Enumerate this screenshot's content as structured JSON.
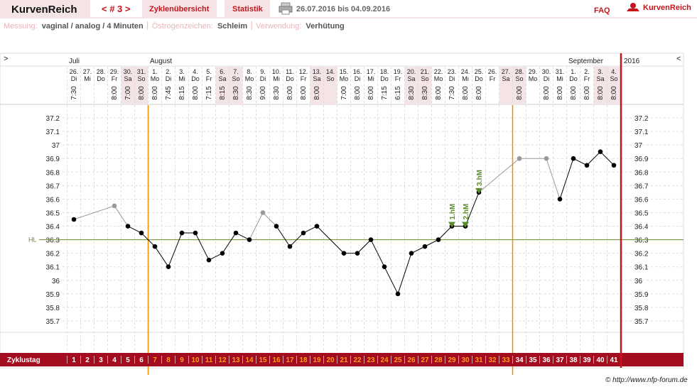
{
  "header": {
    "logo": "KurvenReich",
    "cycle_nav": "< # 3 >",
    "tabs": [
      "Zyklenübersicht",
      "Statistik"
    ],
    "date_range": "26.07.2016 bis 04.09.2016",
    "faq": "FAQ",
    "brand": "KurvenReich"
  },
  "info": [
    {
      "label": "Messung:",
      "value": "vaginal / analog / 4 Minuten"
    },
    {
      "label": "Östrogenzeichen:",
      "value": "Schleim"
    },
    {
      "label": "Verwendung:",
      "value": "Verhütung"
    }
  ],
  "footer": "© http://www.nfp-forum.de",
  "chart_data": {
    "type": "line",
    "nav_left": ">",
    "nav_right": "<",
    "months": [
      "Juli",
      "August",
      "September"
    ],
    "year": "2016",
    "dates": [
      "26.",
      "27.",
      "28.",
      "29.",
      "30.",
      "31.",
      "1.",
      "2.",
      "3.",
      "4.",
      "5.",
      "6.",
      "7.",
      "8.",
      "9.",
      "10.",
      "11.",
      "12.",
      "13.",
      "14.",
      "15.",
      "16.",
      "17.",
      "18.",
      "19.",
      "20.",
      "21.",
      "22.",
      "23.",
      "24.",
      "25.",
      "26.",
      "27.",
      "28.",
      "29.",
      "30.",
      "31.",
      "1.",
      "2.",
      "3.",
      "4."
    ],
    "weekdays": [
      "Di",
      "Mi",
      "Do",
      "Fr",
      "Sa",
      "So",
      "Mo",
      "Di",
      "Mi",
      "Do",
      "Fr",
      "Sa",
      "So",
      "Mo",
      "Di",
      "Mi",
      "Do",
      "Fr",
      "Sa",
      "So",
      "Mo",
      "Di",
      "Mi",
      "Do",
      "Fr",
      "Sa",
      "So",
      "Mo",
      "Di",
      "Mi",
      "Do",
      "Fr",
      "Sa",
      "So",
      "Mo",
      "Di",
      "Mi",
      "Do",
      "Fr",
      "Sa",
      "So"
    ],
    "times": [
      "7:30",
      null,
      null,
      "8:00",
      "7:00",
      "8:00",
      "8:00",
      "7:45",
      "8:15",
      "8:00",
      "7:15",
      "8:15",
      "8:30",
      "8:30",
      "9:00",
      "8:30",
      "8:00",
      "8:00",
      "8:00",
      null,
      "7:00",
      "8:00",
      "8:00",
      "7:15",
      "6:15",
      "8:30",
      "8:30",
      "8:00",
      "7:30",
      "8:00",
      "8:00",
      null,
      null,
      "8:00",
      null,
      "8:00",
      "8:00",
      "8:00",
      "8:00",
      "8:00",
      "8:00"
    ],
    "cycle_day_label": "Zyklustag",
    "cycle_days": [
      1,
      2,
      3,
      4,
      5,
      6,
      7,
      8,
      9,
      10,
      11,
      12,
      13,
      14,
      15,
      16,
      17,
      18,
      19,
      20,
      21,
      22,
      23,
      24,
      25,
      26,
      27,
      28,
      29,
      30,
      31,
      32,
      33,
      34,
      35,
      36,
      37,
      38,
      39,
      40,
      41
    ],
    "values": [
      36.45,
      null,
      null,
      36.55,
      36.4,
      36.35,
      36.25,
      36.1,
      36.35,
      36.35,
      36.15,
      36.2,
      36.35,
      36.3,
      36.5,
      36.4,
      36.25,
      36.35,
      36.4,
      null,
      36.2,
      36.2,
      36.3,
      36.1,
      35.9,
      36.2,
      36.25,
      36.3,
      36.4,
      36.4,
      36.65,
      null,
      null,
      36.9,
      null,
      36.9,
      36.6,
      36.9,
      36.85,
      36.95,
      36.85
    ],
    "excluded_days": [
      4,
      15,
      34,
      36
    ],
    "markers": [
      {
        "day": 29,
        "label": "1.hM"
      },
      {
        "day": 30,
        "label": "2.hM"
      },
      {
        "day": 31,
        "label": "3.hM"
      }
    ],
    "coverline": {
      "value": 36.3,
      "label": "HL"
    },
    "fertile_window": {
      "start": 7,
      "end": 33
    },
    "shaded_weekdays": [
      "Sa",
      "So"
    ],
    "ylim": [
      35.6,
      37.3
    ],
    "yticks": [
      35.7,
      35.8,
      35.9,
      36,
      36.1,
      36.2,
      36.3,
      36.4,
      36.5,
      36.6,
      36.7,
      36.8,
      36.9,
      37,
      37.1,
      37.2
    ],
    "grid": true,
    "colors": {
      "line": "#000000",
      "excluded": "#999999",
      "coverline": "#6b8e23",
      "marker": "#5b8c2a",
      "phase": "#f28c00",
      "end": "#c4161c",
      "band": "#a30d1f",
      "fertile_text": "#ff9a1a"
    }
  }
}
